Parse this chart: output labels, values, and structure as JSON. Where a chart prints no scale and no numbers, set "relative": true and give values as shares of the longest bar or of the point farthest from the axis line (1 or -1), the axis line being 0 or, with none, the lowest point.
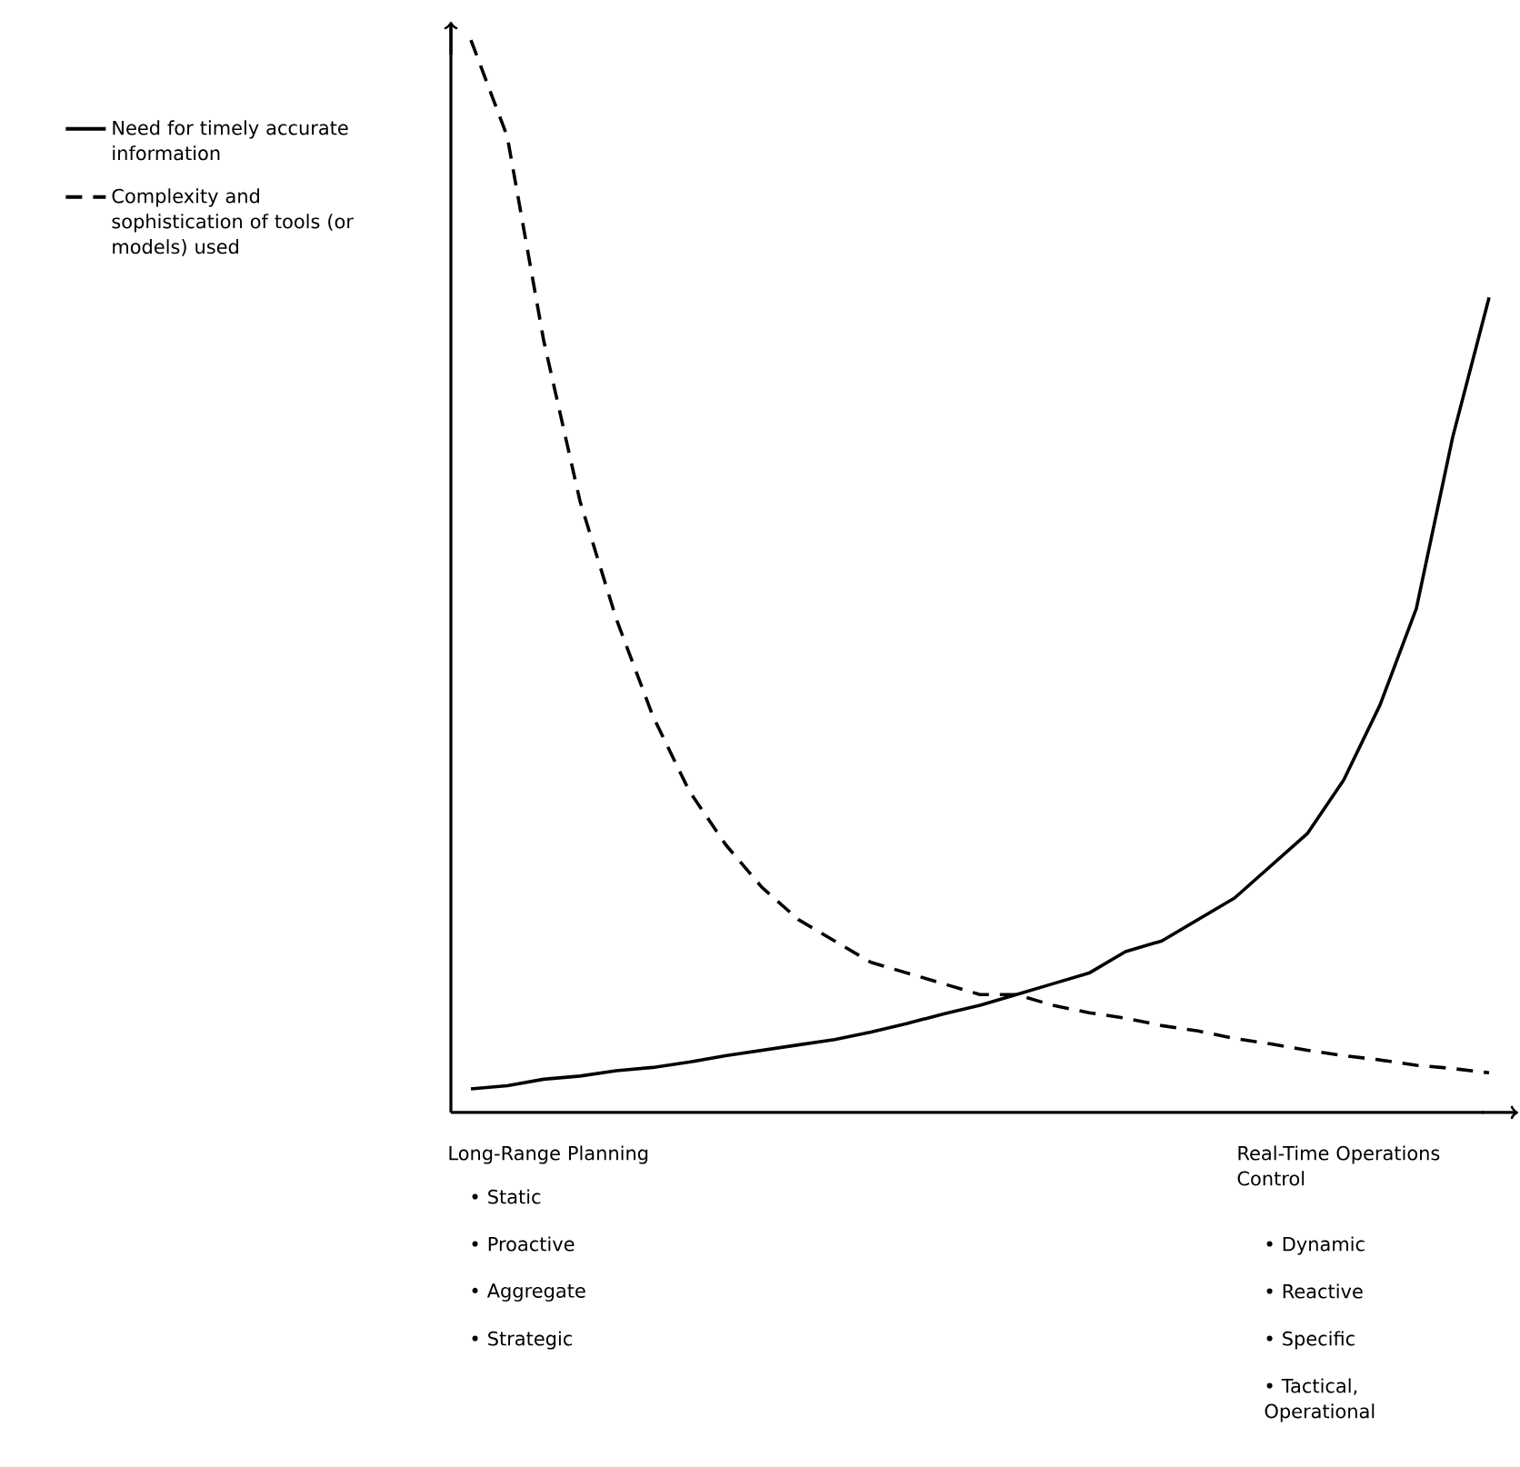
{
  "chart_data": {
    "type": "line",
    "relative": true,
    "legend": "left",
    "categories": [
      null,
      null,
      null,
      null,
      null,
      null,
      null,
      null,
      null,
      null,
      null,
      null,
      null,
      null,
      null,
      null,
      null,
      null,
      null,
      null,
      null,
      null,
      null,
      null,
      null,
      null,
      null,
      null,
      null
    ],
    "series": [
      {
        "name": "Need for timely accurate information",
        "color": "#000000",
        "line_style": "solid",
        "values": [
          0.022,
          0.025,
          0.031,
          0.034,
          0.039,
          0.042,
          0.047,
          0.053,
          0.058,
          0.063,
          0.068,
          0.075,
          0.083,
          0.092,
          0.1,
          0.11,
          0.12,
          0.13,
          0.15,
          0.16,
          0.18,
          0.2,
          0.23,
          0.26,
          0.31,
          0.38,
          0.47,
          0.63,
          0.76
        ]
      },
      {
        "name": "Complexity and sophistication of tools (or models) used",
        "color": "#000000",
        "line_style": "dashed",
        "values": [
          1.0,
          0.91,
          0.72,
          0.57,
          0.46,
          0.37,
          0.3,
          0.25,
          0.21,
          0.18,
          0.16,
          0.14,
          0.13,
          0.12,
          0.11,
          0.11,
          0.1,
          0.093,
          0.088,
          0.081,
          0.076,
          0.069,
          0.064,
          0.058,
          0.053,
          0.049,
          0.044,
          0.041,
          0.037
        ]
      }
    ],
    "annotations": [
      "Long-Range Planning",
      "• Static",
      "• Proactive",
      "• Aggregate",
      "• Strategic",
      "Real-Time Operations Control",
      "• Dynamic",
      "• Reactive",
      "• Specific",
      "• Tactical, Operational"
    ]
  }
}
